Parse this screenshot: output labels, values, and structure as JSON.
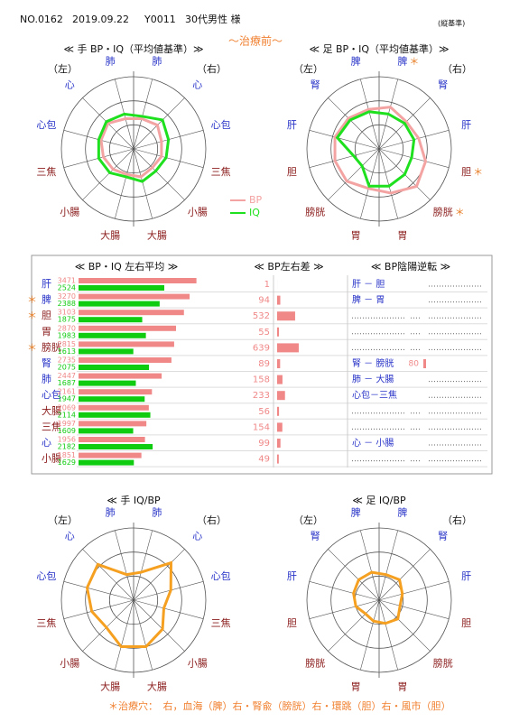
{
  "header": {
    "number": "NO.0162",
    "date": "2019.09.22",
    "id": "Y0011",
    "patient": "30代男性 様",
    "note": "(縦基準)",
    "subtitle": "～治療前～"
  },
  "marker": "＊",
  "chart_data": [
    {
      "type": "radar",
      "title": "≪ 手 BP・IQ（平均値基準）≫",
      "side_labels": [
        "（左）",
        "（右）"
      ],
      "categories": [
        "肺",
        "心",
        "心包",
        "三焦",
        "小腸",
        "大腸",
        "大腸",
        "小腸",
        "三焦",
        "心包",
        "心",
        "肺"
      ],
      "category_colors": [
        "#2a35c8",
        "#2a35c8",
        "#2a35c8",
        "#8b1c1c",
        "#8b1c1c",
        "#8b1c1c",
        "#8b1c1c",
        "#8b1c1c",
        "#8b1c1c",
        "#2a35c8",
        "#2a35c8",
        "#2a35c8"
      ],
      "marked": [
        false,
        false,
        false,
        false,
        false,
        false,
        false,
        false,
        false,
        false,
        false,
        false
      ],
      "rlim": [
        0,
        3
      ],
      "rticks": [
        1,
        2,
        3
      ],
      "legend": true,
      "series": [
        {
          "name": "BP",
          "color": "#f4a3a3",
          "values": [
            1.3,
            1.4,
            1.2,
            1.2,
            1.1,
            1.2,
            1.1,
            1.2,
            1.3,
            1.4,
            1.5,
            1.3
          ]
        },
        {
          "name": "IQ",
          "color": "#1ee01e",
          "values": [
            1.4,
            1.7,
            1.5,
            1.4,
            1.3,
            1.4,
            1.2,
            1.4,
            1.5,
            1.5,
            1.6,
            1.5
          ]
        }
      ]
    },
    {
      "type": "radar",
      "title": "≪ 足 BP・IQ（平均値基準）≫",
      "side_labels": [
        "（左）",
        "（右）"
      ],
      "categories": [
        "脾",
        "腎",
        "肝",
        "胆",
        "膀胱",
        "胃",
        "胃",
        "膀胱",
        "胆",
        "肝",
        "腎",
        "脾"
      ],
      "category_colors": [
        "#2a35c8",
        "#2a35c8",
        "#2a35c8",
        "#8b1c1c",
        "#8b1c1c",
        "#8b1c1c",
        "#8b1c1c",
        "#8b1c1c",
        "#8b1c1c",
        "#2a35c8",
        "#2a35c8",
        "#2a35c8"
      ],
      "marked": [
        true,
        false,
        false,
        true,
        true,
        false,
        false,
        false,
        false,
        false,
        false,
        false
      ],
      "rlim": [
        0,
        3
      ],
      "rticks": [
        1,
        2,
        3
      ],
      "legend": false,
      "series": [
        {
          "color": "#f4a3a3",
          "values": [
            1.8,
            1.6,
            1.7,
            2.0,
            2.2,
            1.9,
            1.7,
            1.9,
            1.9,
            1.9,
            1.8,
            1.7
          ]
        },
        {
          "color": "#1ee01e",
          "values": [
            1.5,
            1.5,
            1.5,
            1.4,
            1.5,
            1.6,
            1.6,
            1.0,
            1.1,
            1.8,
            1.7,
            1.6
          ]
        }
      ]
    },
    {
      "type": "bars-table",
      "title": "≪ BP・IQ 左右平均 ≫",
      "categories": [
        "肝",
        "脾",
        "胆",
        "胃",
        "膀胱",
        "腎",
        "肺",
        "心包",
        "大腸",
        "三焦",
        "心",
        "小腸"
      ],
      "category_colors": [
        "#2a35c8",
        "#2a35c8",
        "#8b1c1c",
        "#8b1c1c",
        "#8b1c1c",
        "#2a35c8",
        "#2a35c8",
        "#2a35c8",
        "#8b1c1c",
        "#8b1c1c",
        "#2a35c8",
        "#8b1c1c"
      ],
      "marked": [
        false,
        true,
        true,
        false,
        true,
        false,
        false,
        false,
        false,
        false,
        false,
        false
      ],
      "xlim": [
        0,
        3800
      ],
      "series": [
        {
          "color": "#f08888",
          "values": [
            3471,
            3270,
            3103,
            2870,
            2815,
            2735,
            2447,
            2161,
            2069,
            1997,
            1956,
            1851
          ]
        },
        {
          "color": "#10cc10",
          "values": [
            2524,
            2388,
            1875,
            1983,
            1613,
            2075,
            1687,
            1947,
            2114,
            1609,
            2182,
            1629
          ]
        }
      ]
    },
    {
      "type": "diff-bars",
      "title": "≪ BP左右差 ≫",
      "color": "#f08888",
      "xlim": [
        0,
        1200
      ],
      "values": [
        1,
        94,
        532,
        55,
        639,
        89,
        158,
        233,
        56,
        154,
        99,
        49
      ]
    },
    {
      "type": "reversal",
      "title": "≪ BP陰陽逆転 ≫",
      "color": "#f08888",
      "xlim": [
        0,
        1200
      ],
      "pairs": [
        "肝 － 胆",
        "脾 － 胃",
        null,
        null,
        null,
        "腎 － 膀胱",
        "肺 － 大腸",
        "心包－三焦",
        null,
        null,
        "心 － 小腸",
        null
      ],
      "values": [
        null,
        null,
        null,
        null,
        null,
        80,
        null,
        null,
        null,
        null,
        null,
        null
      ]
    },
    {
      "type": "radar",
      "title": "≪ 手 IQ/BP",
      "side_labels": [
        "（左）",
        "（右）"
      ],
      "categories": [
        "肺",
        "心",
        "心包",
        "三焦",
        "小腸",
        "大腸",
        "大腸",
        "小腸",
        "三焦",
        "心包",
        "心",
        "肺"
      ],
      "category_colors": [
        "#2a35c8",
        "#2a35c8",
        "#2a35c8",
        "#8b1c1c",
        "#8b1c1c",
        "#8b1c1c",
        "#8b1c1c",
        "#8b1c1c",
        "#8b1c1c",
        "#2a35c8",
        "#2a35c8",
        "#2a35c8"
      ],
      "marked": [
        false,
        false,
        false,
        false,
        false,
        false,
        false,
        false,
        false,
        false,
        false,
        false
      ],
      "rlim": [
        0,
        3
      ],
      "rticks": [
        1,
        2,
        3
      ],
      "legend": false,
      "series": [
        {
          "color": "#f5a020",
          "values": [
            1.2,
            2.2,
            1.6,
            1.3,
            1.7,
            2.0,
            2.0,
            1.6,
            1.8,
            2.0,
            2.1,
            1.1
          ]
        }
      ]
    },
    {
      "type": "radar",
      "title": "≪ 足 IQ/BP",
      "side_labels": [
        "（左）",
        "（右）"
      ],
      "categories": [
        "脾",
        "腎",
        "肝",
        "胆",
        "膀胱",
        "胃",
        "胃",
        "膀胱",
        "胆",
        "肝",
        "腎",
        "脾"
      ],
      "category_colors": [
        "#2a35c8",
        "#2a35c8",
        "#2a35c8",
        "#8b1c1c",
        "#8b1c1c",
        "#8b1c1c",
        "#8b1c1c",
        "#8b1c1c",
        "#8b1c1c",
        "#2a35c8",
        "#2a35c8",
        "#2a35c8"
      ],
      "marked": [
        false,
        false,
        false,
        false,
        false,
        false,
        false,
        false,
        false,
        false,
        false,
        false
      ],
      "rlim": [
        0,
        3
      ],
      "rticks": [
        1,
        2,
        3
      ],
      "legend": false,
      "series": [
        {
          "color": "#f5a020",
          "values": [
            1.1,
            1.2,
            1.0,
            0.9,
            1.1,
            1.0,
            0.9,
            0.8,
            1.0,
            1.1,
            1.2,
            1.2
          ]
        }
      ]
    }
  ],
  "footnote": "＊治療穴：　右，血海（脾）右・腎兪（膀胱）右・環跳（胆）右・風市（胆）"
}
